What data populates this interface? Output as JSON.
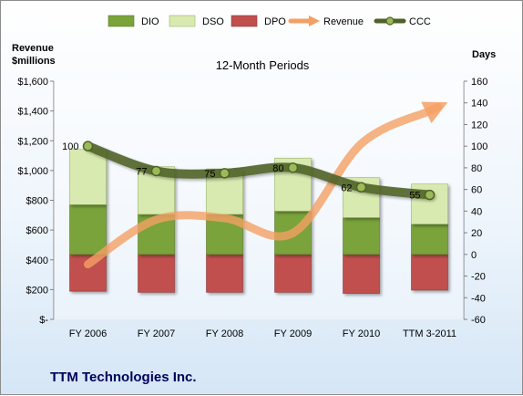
{
  "company": "TTM Technologies Inc.",
  "chart_data": {
    "type": "bar",
    "subtitle": "12-Month Periods",
    "categories": [
      "FY 2006",
      "FY 2007",
      "FY 2008",
      "FY 2009",
      "FY 2010",
      "TTM 3-2011"
    ],
    "y_left": {
      "title_lines": [
        "Revenue",
        "$millions"
      ],
      "range": [
        0,
        1600
      ],
      "ticks": [
        0,
        200,
        400,
        600,
        800,
        1000,
        1200,
        1400,
        1600
      ],
      "tick_labels": [
        "$-",
        "$200",
        "$400",
        "$600",
        "$800",
        "$1,000",
        "$1,200",
        "$1,400",
        "$1,600"
      ]
    },
    "y_right": {
      "title": "Days",
      "range": [
        -60,
        160
      ],
      "ticks": [
        -60,
        -40,
        -20,
        0,
        20,
        40,
        60,
        80,
        100,
        120,
        140,
        160
      ],
      "tick_labels": [
        "-60",
        "-40",
        "-20",
        "0",
        "20",
        "40",
        "60",
        "80",
        "100",
        "120",
        "140",
        "160"
      ]
    },
    "grid": false,
    "legend_position": "top",
    "legend": [
      "DIO",
      "DSO",
      "DPO",
      "Revenue",
      "CCC"
    ],
    "series": [
      {
        "name": "DIO",
        "kind": "stacked-bar",
        "axis": "right",
        "color": "#7aa33a",
        "values": [
          46,
          37,
          37,
          40,
          34,
          28
        ]
      },
      {
        "name": "DSO",
        "kind": "stacked-bar",
        "axis": "right",
        "color": "#d8eab0",
        "values": [
          51,
          44,
          42,
          49,
          37,
          37
        ]
      },
      {
        "name": "DPO",
        "kind": "bar-below-zero",
        "axis": "right",
        "color": "#c0504d",
        "values": [
          -34,
          -35,
          -35,
          -35,
          -36,
          -33
        ]
      },
      {
        "name": "Revenue",
        "kind": "line",
        "axis": "left",
        "color": "#f4a064",
        "values": [
          370,
          670,
          680,
          580,
          1180,
          1400
        ]
      },
      {
        "name": "CCC",
        "kind": "line",
        "axis": "right",
        "color": "#4f6228",
        "values": [
          100,
          77,
          75,
          80,
          62,
          55
        ],
        "data_labels": [
          "100",
          "77",
          "75",
          "80",
          "62",
          "55"
        ]
      }
    ]
  }
}
